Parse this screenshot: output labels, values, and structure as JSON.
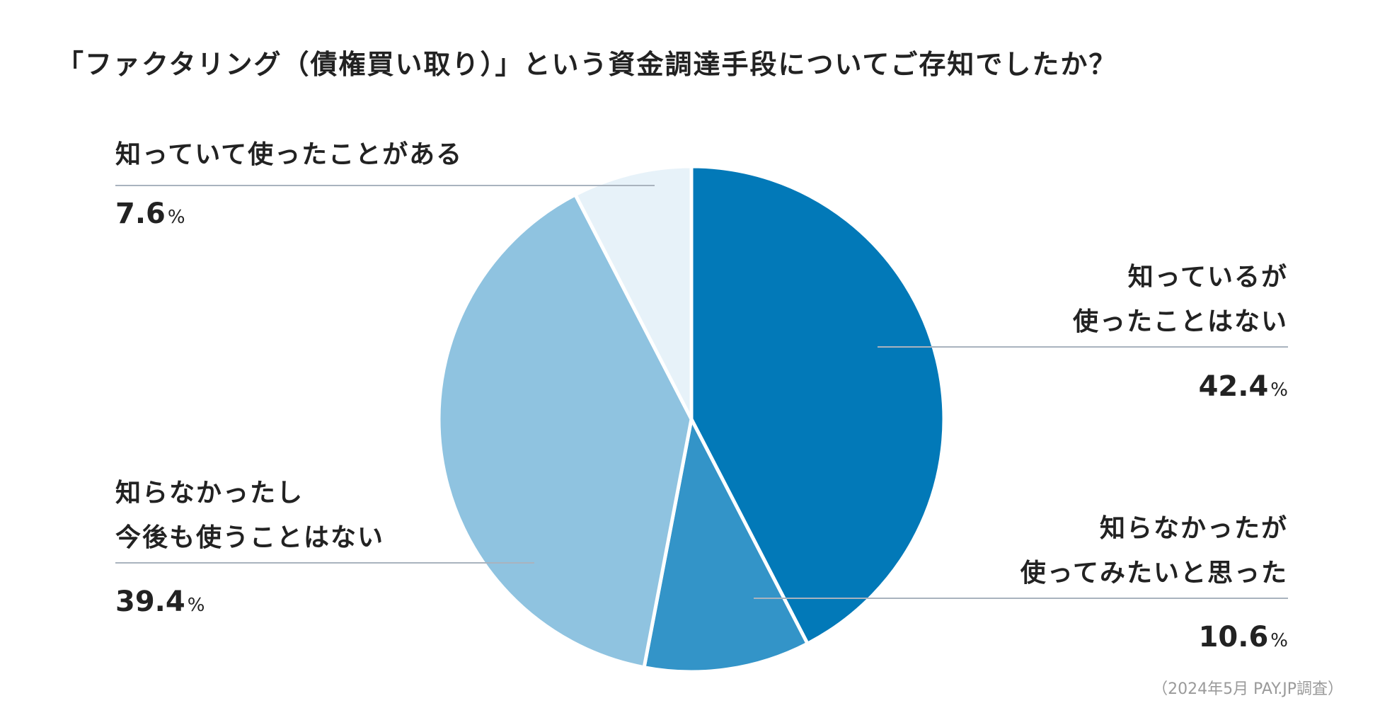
{
  "chart_data": {
    "type": "pie",
    "title": "「ファクタリング（債権買い取り）」という資金調達手段についてご存知でしたか？",
    "unit": "%",
    "slices": [
      {
        "lines": [
          "知っているが",
          "使ったことはない"
        ],
        "value": 42.4,
        "value_label": "42.4",
        "color": "#0279b8"
      },
      {
        "lines": [
          "知らなかったが",
          "使ってみたいと思った"
        ],
        "value": 10.6,
        "value_label": "10.6",
        "color": "#3394c8"
      },
      {
        "lines": [
          "知らなかったし",
          "今後も使うことはない"
        ],
        "value": 39.4,
        "value_label": "39.4",
        "color": "#8fc3e0"
      },
      {
        "lines": [
          "知っていて使ったことがある"
        ],
        "value": 7.6,
        "value_label": "7.6",
        "color": "#e7f2f9"
      }
    ],
    "start_angle": "12 o'clock",
    "direction": "clockwise",
    "slice_border_color": "#ffffff",
    "leader_line_color": "#a9b3be",
    "source": "（2024年5月 PAY.JP調査）"
  }
}
